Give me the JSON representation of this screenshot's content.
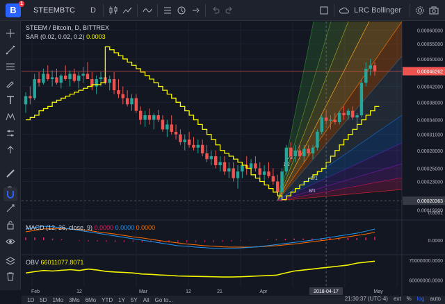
{
  "topbar": {
    "brand": "B",
    "badge": "1",
    "symbol": "STEEMBTC",
    "interval": "D",
    "layout_name": "LRC Bollinger"
  },
  "legend": {
    "main": "STEEM / Bitcoin, D, BITTREX",
    "sar_label": "SAR (0.02, 0.02, 0.2)",
    "sar_value": "0.0003",
    "macd_label": "MACD (12, 26, close, 9)",
    "macd_v1": "0.0000",
    "macd_v2": "0.0000",
    "macd_v3": "0.0000",
    "obv_label": "OBV",
    "obv_value": "66011077.8071"
  },
  "colors": {
    "up": "#26a69a",
    "down": "#ef5350",
    "sar": "#f5f500",
    "macd": "#2196f3",
    "signal": "#ff6d00",
    "last_price": "#ef5350",
    "crosshair_price": "#b2b5be"
  },
  "price_axis": [
    "0.00060000",
    "0.00055000",
    "0.00050000",
    "0.00042000",
    "0.00038000",
    "0.00034000",
    "0.00031000",
    "0.00028000",
    "0.00025000",
    "0.00023000",
    "0.00019200"
  ],
  "last_price_label": "0.00046262",
  "crosshair_price_label": "0.00020363",
  "macd_axis": [
    "0.0001",
    "0.0000"
  ],
  "obv_axis": [
    "70000000.0000",
    "60000000.0000"
  ],
  "time_axis": [
    "Feb",
    "12",
    "Mar",
    "12",
    "21",
    "Apr",
    "2018-04-17",
    "May"
  ],
  "fan_labels": [
    "1/3",
    "1/2",
    "2/1",
    "8/1"
  ],
  "bottombar": {
    "ranges": [
      "1D",
      "5D",
      "1Mo",
      "3Mo",
      "6Mo",
      "YTD",
      "1Y",
      "5Y",
      "All"
    ],
    "goto": "Go to...",
    "time": "21:30:37 (UTC-4)",
    "ext": "ext",
    "pct": "%",
    "log": "log",
    "auto": "auto"
  },
  "chart_data": {
    "type": "candlestick",
    "symbol": "STEEM / Bitcoin, D, BITTREX",
    "overlay": "SAR (0.02, 0.02, 0.2)",
    "indicators": [
      "MACD (12, 26, close, 9)",
      "OBV"
    ],
    "last_price": 0.00046262,
    "crosshair_price": 0.00020363,
    "crosshair_date": "2018-04-17",
    "candles": [
      {
        "o": 0.000375,
        "h": 0.000405,
        "l": 0.000355,
        "c": 0.000395
      },
      {
        "o": 0.000395,
        "h": 0.00042,
        "l": 0.000375,
        "c": 0.00039
      },
      {
        "o": 0.00039,
        "h": 0.000455,
        "l": 0.000385,
        "c": 0.00044
      },
      {
        "o": 0.00044,
        "h": 0.00046,
        "l": 0.00042,
        "c": 0.00043
      },
      {
        "o": 0.00043,
        "h": 0.00047,
        "l": 0.000425,
        "c": 0.000455
      },
      {
        "o": 0.000455,
        "h": 0.00048,
        "l": 0.000435,
        "c": 0.00044
      },
      {
        "o": 0.00044,
        "h": 0.000465,
        "l": 0.00042,
        "c": 0.000445
      },
      {
        "o": 0.000445,
        "h": 0.00047,
        "l": 0.000425,
        "c": 0.00043
      },
      {
        "o": 0.00043,
        "h": 0.000455,
        "l": 0.000415,
        "c": 0.00045
      },
      {
        "o": 0.00045,
        "h": 0.00048,
        "l": 0.000435,
        "c": 0.00044
      },
      {
        "o": 0.00044,
        "h": 0.000465,
        "l": 0.00042,
        "c": 0.000455
      },
      {
        "o": 0.000455,
        "h": 0.00047,
        "l": 0.00043,
        "c": 0.000435
      },
      {
        "o": 0.000435,
        "h": 0.00046,
        "l": 0.000415,
        "c": 0.00045
      },
      {
        "o": 0.00045,
        "h": 0.000475,
        "l": 0.00043,
        "c": 0.000455
      },
      {
        "o": 0.000455,
        "h": 0.00049,
        "l": 0.00044,
        "c": 0.00044
      },
      {
        "o": 0.00044,
        "h": 0.00046,
        "l": 0.00041,
        "c": 0.00042
      },
      {
        "o": 0.00042,
        "h": 0.00045,
        "l": 0.0004,
        "c": 0.00044
      },
      {
        "o": 0.00044,
        "h": 0.00046,
        "l": 0.00042,
        "c": 0.000445
      },
      {
        "o": 0.000445,
        "h": 0.00047,
        "l": 0.000425,
        "c": 0.00043
      },
      {
        "o": 0.00043,
        "h": 0.00045,
        "l": 0.00041,
        "c": 0.00044
      },
      {
        "o": 0.00044,
        "h": 0.00046,
        "l": 0.0004,
        "c": 0.00041
      },
      {
        "o": 0.00041,
        "h": 0.00044,
        "l": 0.00039,
        "c": 0.0004
      },
      {
        "o": 0.0004,
        "h": 0.00042,
        "l": 0.000375,
        "c": 0.00039
      },
      {
        "o": 0.00039,
        "h": 0.00041,
        "l": 0.00037,
        "c": 0.000375
      },
      {
        "o": 0.000375,
        "h": 0.0004,
        "l": 0.00036,
        "c": 0.00039
      },
      {
        "o": 0.00039,
        "h": 0.0004,
        "l": 0.000355,
        "c": 0.00036
      },
      {
        "o": 0.00036,
        "h": 0.00037,
        "l": 0.00033,
        "c": 0.00034
      },
      {
        "o": 0.00034,
        "h": 0.00036,
        "l": 0.000325,
        "c": 0.00035
      },
      {
        "o": 0.00035,
        "h": 0.000365,
        "l": 0.00033,
        "c": 0.00034
      },
      {
        "o": 0.00034,
        "h": 0.000355,
        "l": 0.00032,
        "c": 0.00035
      },
      {
        "o": 0.00035,
        "h": 0.000362,
        "l": 0.000335,
        "c": 0.00034
      },
      {
        "o": 0.00034,
        "h": 0.00035,
        "l": 0.000315,
        "c": 0.00032
      },
      {
        "o": 0.00032,
        "h": 0.00034,
        "l": 0.000305,
        "c": 0.00033
      },
      {
        "o": 0.00033,
        "h": 0.00035,
        "l": 0.00031,
        "c": 0.000315
      },
      {
        "o": 0.000315,
        "h": 0.00033,
        "l": 0.0003,
        "c": 0.00031
      },
      {
        "o": 0.00031,
        "h": 0.00032,
        "l": 0.00029,
        "c": 0.000295
      },
      {
        "o": 0.000295,
        "h": 0.00031,
        "l": 0.00028,
        "c": 0.0003
      },
      {
        "o": 0.0003,
        "h": 0.000315,
        "l": 0.000285,
        "c": 0.00029
      },
      {
        "o": 0.00029,
        "h": 0.000305,
        "l": 0.00028,
        "c": 0.000285
      },
      {
        "o": 0.000285,
        "h": 0.0003,
        "l": 0.000275,
        "c": 0.00029
      },
      {
        "o": 0.00029,
        "h": 0.0003,
        "l": 0.00027,
        "c": 0.000275
      },
      {
        "o": 0.000275,
        "h": 0.00029,
        "l": 0.00026,
        "c": 0.000265
      },
      {
        "o": 0.000265,
        "h": 0.00028,
        "l": 0.000255,
        "c": 0.00027
      },
      {
        "o": 0.00027,
        "h": 0.00028,
        "l": 0.00025,
        "c": 0.000255
      },
      {
        "o": 0.000255,
        "h": 0.00027,
        "l": 0.000245,
        "c": 0.00026
      },
      {
        "o": 0.00026,
        "h": 0.00027,
        "l": 0.00024,
        "c": 0.000245
      },
      {
        "o": 0.000245,
        "h": 0.00026,
        "l": 0.000235,
        "c": 0.00025
      },
      {
        "o": 0.00025,
        "h": 0.00026,
        "l": 0.00023,
        "c": 0.000235
      },
      {
        "o": 0.000235,
        "h": 0.000255,
        "l": 0.00022,
        "c": 0.000245
      },
      {
        "o": 0.000245,
        "h": 0.00026,
        "l": 0.000235,
        "c": 0.000255
      },
      {
        "o": 0.000255,
        "h": 0.00027,
        "l": 0.00024,
        "c": 0.00025
      },
      {
        "o": 0.00025,
        "h": 0.000265,
        "l": 0.00024,
        "c": 0.000258
      },
      {
        "o": 0.000258,
        "h": 0.00027,
        "l": 0.000245,
        "c": 0.00025
      },
      {
        "o": 0.00025,
        "h": 0.00026,
        "l": 0.000235,
        "c": 0.00024
      },
      {
        "o": 0.00024,
        "h": 0.000255,
        "l": 0.00023,
        "c": 0.000245
      },
      {
        "o": 0.000245,
        "h": 0.00026,
        "l": 0.000235,
        "c": 0.000238
      },
      {
        "o": 0.000238,
        "h": 0.00025,
        "l": 0.000225,
        "c": 0.00023
      },
      {
        "o": 0.00023,
        "h": 0.00024,
        "l": 0.00021,
        "c": 0.000215
      },
      {
        "o": 0.000215,
        "h": 0.00025,
        "l": 0.000205,
        "c": 0.000245
      },
      {
        "o": 0.000245,
        "h": 0.00029,
        "l": 0.00024,
        "c": 0.000285
      },
      {
        "o": 0.000285,
        "h": 0.000295,
        "l": 0.00026,
        "c": 0.00027
      },
      {
        "o": 0.00027,
        "h": 0.00029,
        "l": 0.00026,
        "c": 0.00028
      },
      {
        "o": 0.00028,
        "h": 0.00029,
        "l": 0.000265,
        "c": 0.00027
      },
      {
        "o": 0.00027,
        "h": 0.00029,
        "l": 0.00026,
        "c": 0.000283
      },
      {
        "o": 0.000283,
        "h": 0.00029,
        "l": 0.00027,
        "c": 0.000275
      },
      {
        "o": 0.000275,
        "h": 0.00029,
        "l": 0.000265,
        "c": 0.000285
      },
      {
        "o": 0.000285,
        "h": 0.00032,
        "l": 0.00028,
        "c": 0.000315
      },
      {
        "o": 0.000315,
        "h": 0.00035,
        "l": 0.00031,
        "c": 0.000345
      },
      {
        "o": 0.000345,
        "h": 0.00036,
        "l": 0.00033,
        "c": 0.000338
      },
      {
        "o": 0.000338,
        "h": 0.00035,
        "l": 0.00032,
        "c": 0.00034
      },
      {
        "o": 0.00034,
        "h": 0.000355,
        "l": 0.00033,
        "c": 0.000335
      },
      {
        "o": 0.000335,
        "h": 0.00036,
        "l": 0.00033,
        "c": 0.000355
      },
      {
        "o": 0.000355,
        "h": 0.00037,
        "l": 0.00034,
        "c": 0.00035
      },
      {
        "o": 0.00035,
        "h": 0.000365,
        "l": 0.00034,
        "c": 0.00036
      },
      {
        "o": 0.00036,
        "h": 0.00037,
        "l": 0.00034,
        "c": 0.000345
      },
      {
        "o": 0.000345,
        "h": 0.000355,
        "l": 0.00033,
        "c": 0.00035
      },
      {
        "o": 0.00035,
        "h": 0.00044,
        "l": 0.000345,
        "c": 0.00043
      },
      {
        "o": 0.00043,
        "h": 0.00049,
        "l": 0.00042,
        "c": 0.00047
      },
      {
        "o": 0.00047,
        "h": 0.0005,
        "l": 0.00045,
        "c": 0.00048
      },
      {
        "o": 0.00048,
        "h": 0.00049,
        "l": 0.00045,
        "c": 0.000462
      }
    ],
    "sar": [
      0.00034,
      0.000345,
      0.00035,
      0.00036,
      0.000365,
      0.00037,
      0.00038,
      0.000385,
      0.00039,
      0.000395,
      0.0004,
      0.000405,
      0.00041,
      0.000415,
      0.00042,
      0.000425,
      0.000425,
      0.00043,
      0.00054,
      0.00053,
      0.00052,
      0.00051,
      0.0005,
      0.00049,
      0.00048,
      0.00047,
      0.00046,
      0.00045,
      0.00044,
      0.00043,
      0.00042,
      0.00041,
      0.0004,
      0.00039,
      0.00038,
      0.00037,
      0.00036,
      0.00035,
      0.00034,
      0.00033,
      0.00032,
      0.00031,
      0.0003,
      0.00029,
      0.00028,
      0.000275,
      0.00027,
      0.000265,
      0.00026,
      0.000255,
      0.00025,
      0.00024,
      0.000235,
      0.00023,
      0.000225,
      0.00022,
      0.000215,
      0.00021,
      0.000205,
      0.00021,
      0.000215,
      0.00022,
      0.000225,
      0.00023,
      0.000235,
      0.00024,
      0.000245,
      0.00025,
      0.00026,
      0.00027,
      0.00028,
      0.00029,
      0.0003,
      0.00031,
      0.00032,
      0.00033,
      0.00034,
      0.00035,
      0.00036,
      0.00037
    ],
    "macd": [
      4e-05,
      4.5e-05,
      5e-05,
      4.8e-05,
      4.5e-05,
      4e-05,
      3.5e-05,
      3e-05,
      2.5e-05,
      2e-05,
      1.5e-05,
      1e-05,
      5e-06,
      0.0,
      -5e-06,
      -1e-05,
      -1.5e-05,
      -2e-05,
      -2.2e-05,
      -2.5e-05,
      -2.7e-05,
      -3e-05,
      -3e-05,
      -3e-05,
      -2.8e-05,
      -2.6e-05,
      -2.4e-05,
      -2e-05,
      -1.6e-05,
      -1.2e-05,
      -8e-06,
      -4e-06,
      0.0,
      5e-06,
      1e-05,
      1.5e-05,
      2e-05,
      2.5e-05,
      3.2e-05,
      4e-05
    ],
    "signal": [
      3e-05,
      3.5e-05,
      4e-05,
      4.2e-05,
      4.2e-05,
      4e-05,
      3.8e-05,
      3.5e-05,
      3e-05,
      2.6e-05,
      2.2e-05,
      1.7e-05,
      1.2e-05,
      8e-06,
      3e-06,
      -2e-06,
      -6e-06,
      -1e-05,
      -1.4e-05,
      -1.7e-05,
      -2e-05,
      -2.2e-05,
      -2.4e-05,
      -2.5e-05,
      -2.5e-05,
      -2.5e-05,
      -2.4e-05,
      -2.2e-05,
      -2e-05,
      -1.7e-05,
      -1.4e-05,
      -1e-05,
      -6e-06,
      -2e-06,
      2e-06,
      7e-06,
      1.2e-05,
      1.7e-05,
      2.2e-05,
      2.8e-05
    ],
    "obv": [
      63500000,
      64200000,
      64800000,
      64500000,
      64900000,
      65200000,
      64800000,
      65500000,
      65000000,
      64300000,
      64000000,
      63800000,
      63500000,
      63000000,
      62800000,
      62500000,
      62300000,
      62000000,
      61900000,
      61800000,
      61700000,
      61600000,
      61500000,
      61500000,
      61600000,
      61800000,
      62000000,
      62200000,
      62400000,
      63500000,
      64500000,
      65000000,
      65500000,
      66000000,
      66500000,
      67000000,
      67500000,
      68500000,
      69000000,
      69500000
    ]
  }
}
